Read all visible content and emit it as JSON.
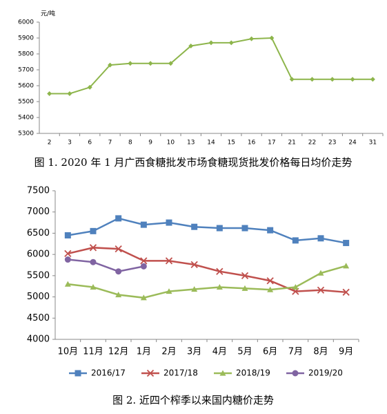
{
  "chart_data": [
    {
      "type": "line",
      "title": "图 1. 2020 年 1 月广西食糖批发市场食糖现货批发价格每日均价走势",
      "y_label": "元/吨",
      "categories": [
        "2",
        "3",
        "6",
        "7",
        "8",
        "9",
        "10",
        "13",
        "14",
        "15",
        "16",
        "17",
        "21",
        "22",
        "23",
        "24",
        "31"
      ],
      "series": [
        {
          "name": null,
          "color": "#8db54b",
          "marker": "diamond",
          "values": [
            5550,
            5550,
            5590,
            5730,
            5740,
            5740,
            5740,
            5850,
            5870,
            5870,
            5895,
            5900,
            5640,
            5640,
            5640,
            5640,
            5640
          ]
        }
      ],
      "ylim": [
        5300,
        6000
      ],
      "yticks": [
        5300,
        5400,
        5500,
        5600,
        5700,
        5800,
        5900,
        6000
      ],
      "grid": false,
      "legend": false
    },
    {
      "type": "line",
      "title": "图 2. 近四个榨季以来国内糖价走势",
      "categories": [
        "10月",
        "11月",
        "12月",
        "1月",
        "2月",
        "3月",
        "4月",
        "5月",
        "6月",
        "7月",
        "8月",
        "9月"
      ],
      "series": [
        {
          "name": "2016/17",
          "color": "#4f81bd",
          "marker": "square",
          "values": [
            6450,
            6550,
            6850,
            6700,
            6750,
            6650,
            6620,
            6620,
            6570,
            6330,
            6380,
            6270
          ]
        },
        {
          "name": "2017/18",
          "color": "#c0504d",
          "marker": "x",
          "values": [
            6020,
            6160,
            6130,
            5850,
            5850,
            5760,
            5600,
            5500,
            5380,
            5130,
            5160,
            5110
          ]
        },
        {
          "name": "2018/19",
          "color": "#9bbb59",
          "marker": "triangle",
          "values": [
            5300,
            5230,
            5050,
            4980,
            5130,
            5180,
            5230,
            5200,
            5170,
            5230,
            5560,
            5730
          ]
        },
        {
          "name": "2019/20",
          "color": "#8064a2",
          "marker": "circle",
          "values": [
            5880,
            5820,
            5600,
            5720,
            null,
            null,
            null,
            null,
            null,
            null,
            null,
            null
          ]
        }
      ],
      "ylim": [
        4000,
        7500
      ],
      "yticks": [
        4000,
        4500,
        5000,
        5500,
        6000,
        6500,
        7000,
        7500
      ],
      "grid": false,
      "legend": "bottom"
    }
  ]
}
